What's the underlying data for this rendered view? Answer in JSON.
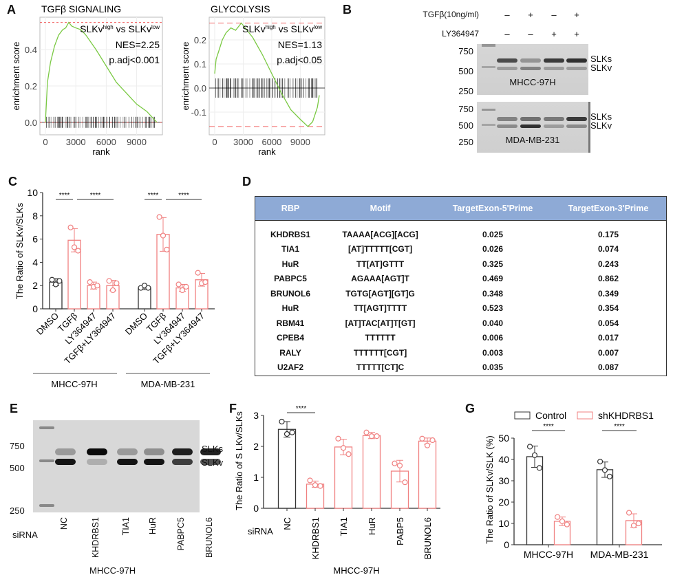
{
  "panel_labels": [
    "A",
    "B",
    "C",
    "D",
    "E",
    "F",
    "G"
  ],
  "panel_b": {
    "rows": [
      {
        "label": "TGFβ(10ng/ml)",
        "signs": [
          "–",
          "+",
          "–",
          "+"
        ]
      },
      {
        "label": "LY364947",
        "signs": [
          "–",
          "–",
          "+",
          "+"
        ]
      }
    ],
    "gels": [
      {
        "cell_line": "MHCC-97H",
        "markers": [
          "750",
          "500",
          "250"
        ],
        "bands": [
          "SLKs",
          "SLKv"
        ]
      },
      {
        "cell_line": "MDA-MB-231",
        "markers": [
          "750",
          "500",
          "250"
        ],
        "bands": [
          "SLKs",
          "SLKv"
        ]
      }
    ]
  },
  "panel_d": {
    "header_color": "#8eaad6",
    "columns": [
      "RBP",
      "Motif",
      "TargetExon-5'Prime",
      "TargetExon-3'Prime"
    ],
    "rows": [
      [
        "KHDRBS1",
        "TAAAA[ACG][ACG]",
        "0.025",
        "0.175"
      ],
      [
        "TIA1",
        "[AT]TTTTT[CGT]",
        "0.026",
        "0.074"
      ],
      [
        "HuR",
        "TT[AT]GTTT",
        "0.325",
        "0.243"
      ],
      [
        "PABPC5",
        "AGAAA[AGT]T",
        "0.469",
        "0.862"
      ],
      [
        "BRUNOL6",
        "TGTG[AGT][GT]G",
        "0.348",
        "0.349"
      ],
      [
        "HuR",
        "TT[AGT]TTTT",
        "0.523",
        "0.354"
      ],
      [
        "RBM41",
        "[AT]TAC[AT]T[GT]",
        "0.040",
        "0.054"
      ],
      [
        "CPEB4",
        "TTTTTT",
        "0.006",
        "0.017"
      ],
      [
        "RALY",
        "TTTTTT[CGT]",
        "0.003",
        "0.007"
      ],
      [
        "U2AF2",
        "TTTTT[CT]C",
        "0.035",
        "0.087"
      ]
    ]
  },
  "panel_e": {
    "markers": [
      "750",
      "500",
      "250"
    ],
    "bands": [
      "SLKs",
      "SLKv"
    ],
    "row_label": "siRNA",
    "lanes": [
      "NC",
      "KHDRBS1",
      "TIA1",
      "HuR",
      "PABPC5",
      "BRUNOL6"
    ],
    "cell_line": "MHCC-97H"
  },
  "colors": {
    "control": "#333333",
    "treated": "#f08080",
    "curve": "#7ac943",
    "dashed": "#f05a5a"
  },
  "chart_data": [
    {
      "type": "line",
      "title": "TGFβ SIGNALING",
      "xlabel": "rank",
      "ylabel": "enrichment score",
      "xlim": [
        0,
        11000
      ],
      "ylim": [
        -0.05,
        0.56
      ],
      "xticks": [
        "0",
        "3000",
        "6000",
        "9000"
      ],
      "yticks": [
        "0.0",
        "0.2",
        "0.4"
      ],
      "annotation": [
        "SLKv",
        "high",
        " vs SLKv",
        "low",
        "NES=2.25",
        "p.adj<0.001"
      ],
      "max_es": 0.55,
      "x": [
        0,
        200,
        500,
        900,
        1300,
        1700,
        2000,
        2300,
        2600,
        3000,
        3500,
        4000,
        5000,
        6000,
        7000,
        8000,
        9000,
        10000,
        10500,
        11000
      ],
      "y": [
        0,
        0.22,
        0.33,
        0.42,
        0.48,
        0.51,
        0.52,
        0.55,
        0.53,
        0.52,
        0.51,
        0.48,
        0.4,
        0.31,
        0.22,
        0.16,
        0.1,
        0.06,
        0.03,
        0.0
      ]
    },
    {
      "type": "line",
      "title": "GLYCOLYSIS",
      "xlabel": "rank",
      "ylabel": "enrichment score",
      "xlim": [
        0,
        11000
      ],
      "ylim": [
        -0.18,
        0.28
      ],
      "xticks": [
        "0",
        "3000",
        "6000",
        "9000"
      ],
      "yticks": [
        "-0.1",
        "0.0",
        "0.1",
        "0.2"
      ],
      "annotation": [
        "SLKv",
        "high",
        " vs SLKv",
        "low",
        "NES=1.13",
        "p.adj<0.05"
      ],
      "max_es": 0.27,
      "min_es": -0.16,
      "x": [
        0,
        150,
        400,
        800,
        1200,
        1700,
        2200,
        2800,
        3200,
        4000,
        5000,
        6000,
        7000,
        8000,
        9000,
        9800,
        10300,
        10800,
        11000
      ],
      "y": [
        0.06,
        0.12,
        0.15,
        0.2,
        0.23,
        0.25,
        0.24,
        0.27,
        0.25,
        0.21,
        0.14,
        0.06,
        -0.02,
        -0.09,
        -0.13,
        -0.16,
        -0.14,
        -0.08,
        -0.03
      ]
    },
    {
      "type": "bar",
      "ylabel": "The Ratio of SLKv/SLKs",
      "ylim": [
        0,
        10
      ],
      "yticks": [
        "0",
        "2",
        "4",
        "6",
        "8",
        "10"
      ],
      "groups": [
        "MHCC-97H",
        "MDA-MB-231"
      ],
      "categories": [
        "DMSO",
        "TGFβ",
        "LY364947",
        "TGFβ+LY364947",
        "DMSO",
        "TGFβ",
        "LY364947",
        "TGFβ+LY364947"
      ],
      "values": [
        2.3,
        5.9,
        2.0,
        2.0,
        1.8,
        6.4,
        1.8,
        2.5
      ],
      "sd": [
        0.3,
        1.0,
        0.3,
        0.45,
        0.15,
        1.45,
        0.3,
        0.55
      ],
      "points": [
        [
          2.5,
          2.1,
          2.4
        ],
        [
          7.0,
          5.3,
          5.0
        ],
        [
          2.3,
          1.9,
          2.0
        ],
        [
          2.4,
          1.6,
          2.2
        ],
        [
          1.8,
          2.0,
          1.8
        ],
        [
          7.9,
          6.3,
          5.1
        ],
        [
          2.1,
          1.6,
          1.9
        ],
        [
          3.1,
          2.2,
          2.3
        ]
      ],
      "significance": [
        "****",
        "****",
        "****",
        "****"
      ]
    },
    {
      "type": "bar",
      "ylabel": "The  Ratio of S LKv/SLKs",
      "xlabel": "MHCC-97H",
      "row_label": "siRNA",
      "ylim": [
        0,
        3
      ],
      "yticks": [
        "0",
        "1",
        "2",
        "3"
      ],
      "categories": [
        "NC",
        "KHDRBS1",
        "TIA1",
        "HuR",
        "PABP5",
        "BRUNOL6"
      ],
      "values": [
        2.55,
        0.78,
        1.98,
        2.35,
        1.2,
        2.17
      ],
      "sd": [
        0.25,
        0.1,
        0.25,
        0.1,
        0.35,
        0.1
      ],
      "points": [
        [
          2.8,
          2.4,
          2.45
        ],
        [
          0.9,
          0.75,
          0.72
        ],
        [
          2.25,
          1.95,
          1.75
        ],
        [
          2.45,
          2.33,
          2.33
        ],
        [
          1.45,
          1.38,
          0.84
        ],
        [
          2.25,
          2.03,
          2.2
        ]
      ],
      "significance": [
        "****"
      ]
    },
    {
      "type": "bar",
      "ylabel": "The Ratio of SLKv/SLK (%)",
      "ylim": [
        0,
        50
      ],
      "yticks": [
        "0",
        "10",
        "20",
        "30",
        "40",
        "50"
      ],
      "categories": [
        "MHCC-97H",
        "MDA-MB-231"
      ],
      "series": [
        {
          "name": "Control",
          "values": [
            41.3,
            35.2
          ],
          "sd": [
            5,
            3.6
          ],
          "points": [
            [
              46,
              42,
              36
            ],
            [
              39,
              35,
              32
            ]
          ]
        },
        {
          "name": "shKHDRBS1",
          "values": [
            11,
            11.3
          ],
          "sd": [
            2,
            3.2
          ],
          "points": [
            [
              13,
              11,
              9.5
            ],
            [
              15,
              9,
              10
            ]
          ]
        }
      ],
      "legend": "top",
      "significance": [
        "****",
        "****"
      ]
    }
  ]
}
